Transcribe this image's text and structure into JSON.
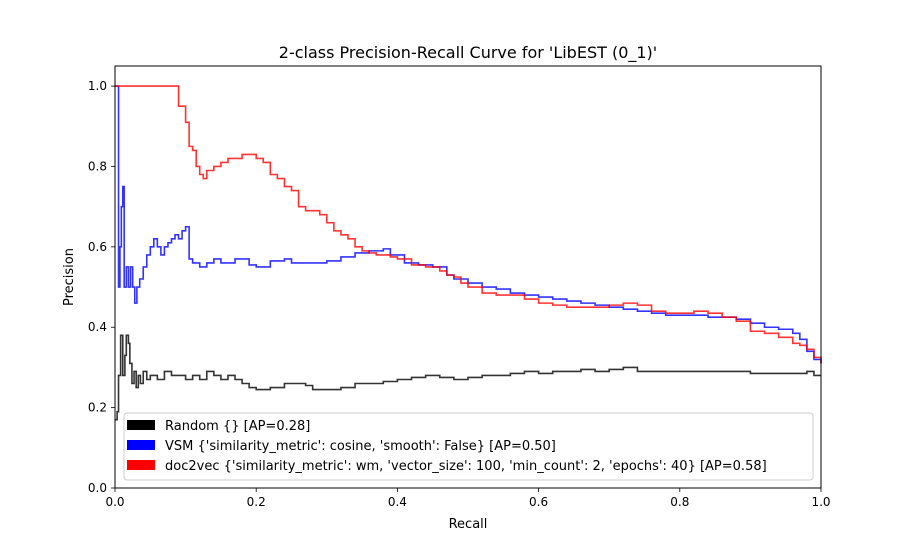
{
  "chart_data": {
    "type": "line",
    "title": "2-class Precision-Recall Curve for 'LibEST (0_1)'",
    "xlabel": "Recall",
    "ylabel": "Precision",
    "xlim": [
      0.0,
      1.0
    ],
    "ylim": [
      0.0,
      1.05
    ],
    "xticks": [
      0.0,
      0.2,
      0.4,
      0.6,
      0.8,
      1.0
    ],
    "xtick_labels": [
      "0.0",
      "0.2",
      "0.4",
      "0.6",
      "0.8",
      "1.0"
    ],
    "yticks": [
      0.0,
      0.2,
      0.4,
      0.6,
      0.8,
      1.0
    ],
    "ytick_labels": [
      "0.0",
      "0.2",
      "0.4",
      "0.6",
      "0.8",
      "1.0"
    ],
    "grid": false,
    "legend_position": "lower-right",
    "series": [
      {
        "name": "Random {} [AP=0.28]",
        "color": "#000000",
        "points": [
          [
            0.0,
            0.17
          ],
          [
            0.003,
            0.19
          ],
          [
            0.005,
            0.28
          ],
          [
            0.008,
            0.38
          ],
          [
            0.011,
            0.28
          ],
          [
            0.014,
            0.33
          ],
          [
            0.016,
            0.38
          ],
          [
            0.019,
            0.36
          ],
          [
            0.021,
            0.31
          ],
          [
            0.024,
            0.26
          ],
          [
            0.027,
            0.29
          ],
          [
            0.03,
            0.25
          ],
          [
            0.033,
            0.28
          ],
          [
            0.036,
            0.26
          ],
          [
            0.04,
            0.29
          ],
          [
            0.045,
            0.27
          ],
          [
            0.05,
            0.28
          ],
          [
            0.06,
            0.27
          ],
          [
            0.07,
            0.29
          ],
          [
            0.08,
            0.28
          ],
          [
            0.09,
            0.28
          ],
          [
            0.1,
            0.27
          ],
          [
            0.11,
            0.28
          ],
          [
            0.12,
            0.27
          ],
          [
            0.13,
            0.29
          ],
          [
            0.14,
            0.28
          ],
          [
            0.15,
            0.27
          ],
          [
            0.16,
            0.28
          ],
          [
            0.17,
            0.27
          ],
          [
            0.18,
            0.26
          ],
          [
            0.19,
            0.25
          ],
          [
            0.2,
            0.245
          ],
          [
            0.22,
            0.25
          ],
          [
            0.24,
            0.26
          ],
          [
            0.26,
            0.26
          ],
          [
            0.27,
            0.255
          ],
          [
            0.28,
            0.245
          ],
          [
            0.3,
            0.245
          ],
          [
            0.32,
            0.25
          ],
          [
            0.34,
            0.26
          ],
          [
            0.36,
            0.26
          ],
          [
            0.38,
            0.265
          ],
          [
            0.4,
            0.27
          ],
          [
            0.42,
            0.275
          ],
          [
            0.44,
            0.28
          ],
          [
            0.46,
            0.275
          ],
          [
            0.48,
            0.27
          ],
          [
            0.5,
            0.275
          ],
          [
            0.52,
            0.28
          ],
          [
            0.54,
            0.28
          ],
          [
            0.56,
            0.285
          ],
          [
            0.58,
            0.29
          ],
          [
            0.6,
            0.285
          ],
          [
            0.62,
            0.29
          ],
          [
            0.64,
            0.29
          ],
          [
            0.66,
            0.295
          ],
          [
            0.68,
            0.29
          ],
          [
            0.7,
            0.295
          ],
          [
            0.72,
            0.3
          ],
          [
            0.74,
            0.29
          ],
          [
            0.76,
            0.29
          ],
          [
            0.8,
            0.29
          ],
          [
            0.85,
            0.29
          ],
          [
            0.9,
            0.285
          ],
          [
            0.95,
            0.285
          ],
          [
            0.98,
            0.29
          ],
          [
            0.99,
            0.28
          ],
          [
            1.0,
            0.28
          ]
        ]
      },
      {
        "name": "VSM {'similarity_metric': cosine, 'smooth': False} [AP=0.50]",
        "color": "#0000ff",
        "points": [
          [
            0.0,
            1.0
          ],
          [
            0.003,
            1.0
          ],
          [
            0.005,
            0.5
          ],
          [
            0.007,
            0.6
          ],
          [
            0.009,
            0.7
          ],
          [
            0.011,
            0.75
          ],
          [
            0.013,
            0.5
          ],
          [
            0.016,
            0.55
          ],
          [
            0.019,
            0.5
          ],
          [
            0.022,
            0.55
          ],
          [
            0.025,
            0.5
          ],
          [
            0.028,
            0.46
          ],
          [
            0.031,
            0.5
          ],
          [
            0.035,
            0.52
          ],
          [
            0.04,
            0.55
          ],
          [
            0.045,
            0.58
          ],
          [
            0.05,
            0.6
          ],
          [
            0.055,
            0.62
          ],
          [
            0.06,
            0.6
          ],
          [
            0.065,
            0.58
          ],
          [
            0.07,
            0.6
          ],
          [
            0.075,
            0.61
          ],
          [
            0.08,
            0.62
          ],
          [
            0.085,
            0.63
          ],
          [
            0.09,
            0.62
          ],
          [
            0.095,
            0.64
          ],
          [
            0.1,
            0.65
          ],
          [
            0.105,
            0.57
          ],
          [
            0.11,
            0.56
          ],
          [
            0.12,
            0.55
          ],
          [
            0.13,
            0.56
          ],
          [
            0.14,
            0.57
          ],
          [
            0.15,
            0.56
          ],
          [
            0.17,
            0.57
          ],
          [
            0.19,
            0.555
          ],
          [
            0.2,
            0.55
          ],
          [
            0.22,
            0.565
          ],
          [
            0.24,
            0.57
          ],
          [
            0.25,
            0.56
          ],
          [
            0.27,
            0.56
          ],
          [
            0.3,
            0.565
          ],
          [
            0.32,
            0.575
          ],
          [
            0.34,
            0.585
          ],
          [
            0.36,
            0.59
          ],
          [
            0.38,
            0.595
          ],
          [
            0.39,
            0.58
          ],
          [
            0.41,
            0.56
          ],
          [
            0.43,
            0.555
          ],
          [
            0.45,
            0.55
          ],
          [
            0.47,
            0.53
          ],
          [
            0.48,
            0.52
          ],
          [
            0.5,
            0.51
          ],
          [
            0.52,
            0.5
          ],
          [
            0.54,
            0.495
          ],
          [
            0.56,
            0.485
          ],
          [
            0.58,
            0.48
          ],
          [
            0.6,
            0.475
          ],
          [
            0.62,
            0.47
          ],
          [
            0.64,
            0.465
          ],
          [
            0.66,
            0.46
          ],
          [
            0.68,
            0.455
          ],
          [
            0.7,
            0.45
          ],
          [
            0.72,
            0.445
          ],
          [
            0.74,
            0.44
          ],
          [
            0.76,
            0.435
          ],
          [
            0.78,
            0.43
          ],
          [
            0.8,
            0.43
          ],
          [
            0.82,
            0.43
          ],
          [
            0.84,
            0.425
          ],
          [
            0.86,
            0.425
          ],
          [
            0.88,
            0.42
          ],
          [
            0.9,
            0.41
          ],
          [
            0.92,
            0.4
          ],
          [
            0.94,
            0.395
          ],
          [
            0.96,
            0.385
          ],
          [
            0.97,
            0.37
          ],
          [
            0.98,
            0.34
          ],
          [
            0.99,
            0.32
          ],
          [
            1.0,
            0.31
          ]
        ]
      },
      {
        "name": "doc2vec {'similarity_metric': wm, 'vector_size': 100, 'min_count': 2, 'epochs': 40} [AP=0.58]",
        "color": "#ff0000",
        "points": [
          [
            0.0,
            1.0
          ],
          [
            0.09,
            1.0
          ],
          [
            0.09,
            0.95
          ],
          [
            0.1,
            0.95
          ],
          [
            0.1,
            0.91
          ],
          [
            0.105,
            0.91
          ],
          [
            0.105,
            0.85
          ],
          [
            0.11,
            0.84
          ],
          [
            0.115,
            0.8
          ],
          [
            0.12,
            0.78
          ],
          [
            0.125,
            0.77
          ],
          [
            0.13,
            0.79
          ],
          [
            0.14,
            0.8
          ],
          [
            0.15,
            0.81
          ],
          [
            0.16,
            0.82
          ],
          [
            0.17,
            0.82
          ],
          [
            0.18,
            0.83
          ],
          [
            0.19,
            0.83
          ],
          [
            0.2,
            0.82
          ],
          [
            0.21,
            0.81
          ],
          [
            0.22,
            0.78
          ],
          [
            0.23,
            0.77
          ],
          [
            0.24,
            0.75
          ],
          [
            0.25,
            0.74
          ],
          [
            0.26,
            0.7
          ],
          [
            0.27,
            0.69
          ],
          [
            0.28,
            0.69
          ],
          [
            0.29,
            0.68
          ],
          [
            0.3,
            0.66
          ],
          [
            0.31,
            0.64
          ],
          [
            0.32,
            0.63
          ],
          [
            0.33,
            0.62
          ],
          [
            0.34,
            0.6
          ],
          [
            0.35,
            0.59
          ],
          [
            0.36,
            0.585
          ],
          [
            0.37,
            0.58
          ],
          [
            0.38,
            0.58
          ],
          [
            0.39,
            0.575
          ],
          [
            0.4,
            0.57
          ],
          [
            0.42,
            0.555
          ],
          [
            0.44,
            0.55
          ],
          [
            0.46,
            0.54
          ],
          [
            0.47,
            0.53
          ],
          [
            0.48,
            0.525
          ],
          [
            0.49,
            0.51
          ],
          [
            0.5,
            0.5
          ],
          [
            0.52,
            0.485
          ],
          [
            0.54,
            0.48
          ],
          [
            0.56,
            0.48
          ],
          [
            0.58,
            0.47
          ],
          [
            0.6,
            0.46
          ],
          [
            0.62,
            0.455
          ],
          [
            0.64,
            0.45
          ],
          [
            0.66,
            0.45
          ],
          [
            0.68,
            0.45
          ],
          [
            0.7,
            0.455
          ],
          [
            0.72,
            0.46
          ],
          [
            0.74,
            0.455
          ],
          [
            0.76,
            0.44
          ],
          [
            0.78,
            0.435
          ],
          [
            0.8,
            0.435
          ],
          [
            0.82,
            0.44
          ],
          [
            0.84,
            0.435
          ],
          [
            0.86,
            0.425
          ],
          [
            0.88,
            0.415
          ],
          [
            0.9,
            0.39
          ],
          [
            0.92,
            0.385
          ],
          [
            0.94,
            0.375
          ],
          [
            0.96,
            0.36
          ],
          [
            0.97,
            0.355
          ],
          [
            0.98,
            0.345
          ],
          [
            0.99,
            0.325
          ],
          [
            1.0,
            0.31
          ]
        ]
      }
    ]
  }
}
